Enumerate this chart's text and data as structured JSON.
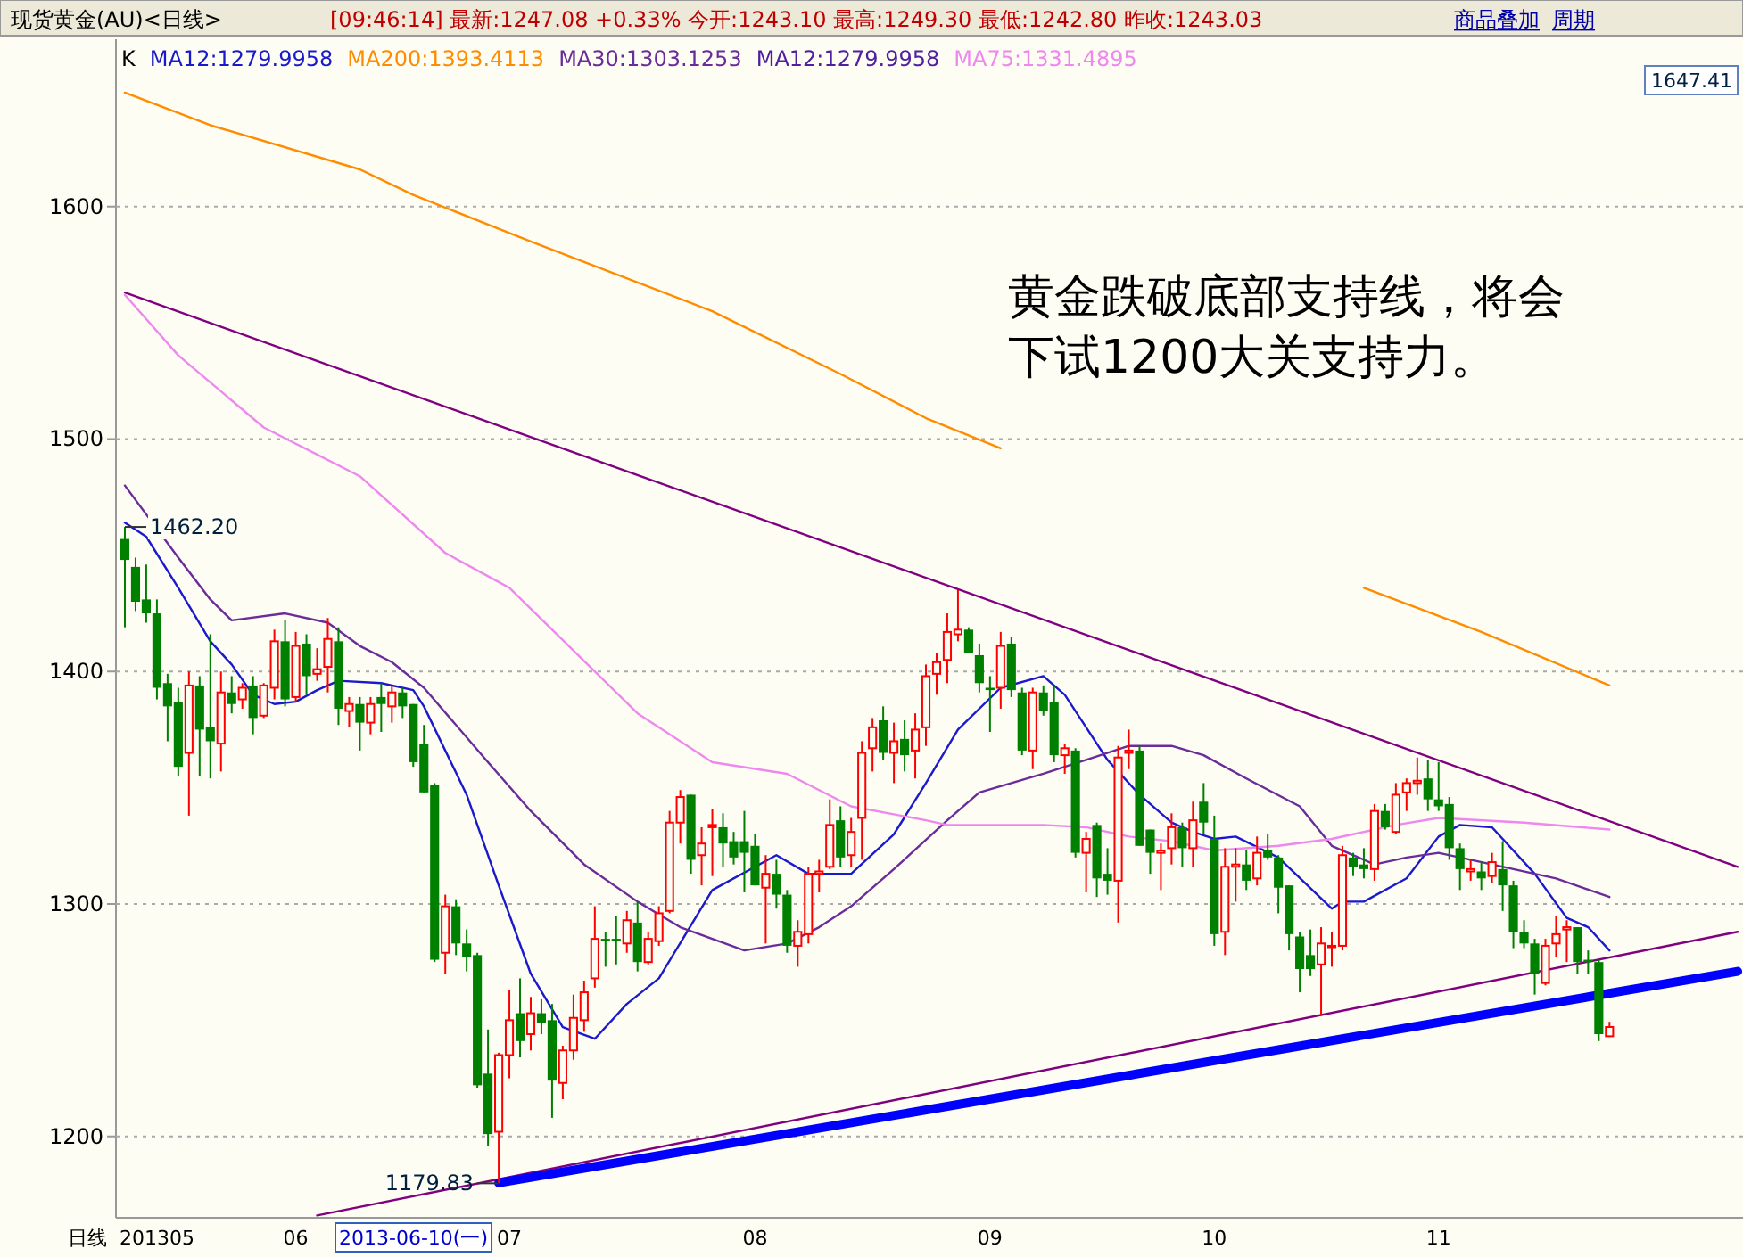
{
  "chart_data": {
    "type": "candlestick",
    "categories": [
      null,
      null,
      null,
      "201305",
      null,
      null,
      null,
      null,
      null,
      null,
      null,
      null,
      null,
      null,
      null,
      null,
      "06",
      null,
      null,
      null,
      null,
      null,
      null,
      null,
      null,
      null,
      null,
      null,
      null,
      null,
      null,
      null,
      null,
      null,
      null,
      null,
      "07",
      null,
      null,
      null,
      null,
      null,
      null,
      null,
      null,
      null,
      null,
      null,
      null,
      null,
      null,
      null,
      null,
      null,
      null,
      null,
      null,
      null,
      null,
      "08",
      null,
      null,
      null,
      null,
      null,
      null,
      null,
      null,
      null,
      null,
      null,
      null,
      null,
      null,
      null,
      null,
      null,
      null,
      null,
      null,
      null,
      "09",
      null,
      null,
      null,
      null,
      null,
      null,
      null,
      null,
      null,
      null,
      null,
      null,
      null,
      null,
      null,
      null,
      null,
      null,
      null,
      null,
      "10",
      null,
      null,
      null,
      null,
      null,
      null,
      null,
      null,
      null,
      null,
      null,
      null,
      null,
      null,
      null,
      null,
      null,
      null,
      null,
      null,
      "11",
      null,
      null,
      null,
      null,
      null,
      null,
      null,
      null,
      null,
      null,
      null,
      null,
      null,
      null,
      null,
      null,
      null,
      null,
      null,
      null,
      null,
      null,
      null,
      null,
      null,
      null,
      null,
      null
    ],
    "ohlc": [
      [
        1457,
        1462.2,
        1419,
        1448
      ],
      [
        1445,
        1449,
        1426,
        1430
      ],
      [
        1431,
        1446,
        1421,
        1425
      ],
      [
        1425,
        1431,
        1388,
        1393
      ],
      [
        1395,
        1399,
        1370,
        1385
      ],
      [
        1387,
        1393,
        1355,
        1359
      ],
      [
        1365,
        1400,
        1338,
        1394
      ],
      [
        1394,
        1398,
        1355,
        1375
      ],
      [
        1376,
        1416,
        1354,
        1370
      ],
      [
        1369,
        1400,
        1357,
        1391
      ],
      [
        1391,
        1398,
        1382,
        1386
      ],
      [
        1388,
        1395,
        1384,
        1393
      ],
      [
        1394,
        1398,
        1373,
        1380
      ],
      [
        1381,
        1395,
        1380,
        1394
      ],
      [
        1393,
        1418,
        1388,
        1413
      ],
      [
        1413,
        1422,
        1385,
        1388
      ],
      [
        1389,
        1417,
        1387,
        1411
      ],
      [
        1412,
        1416,
        1390,
        1398
      ],
      [
        1399,
        1410,
        1396,
        1401
      ],
      [
        1402,
        1423,
        1391,
        1414
      ],
      [
        1413,
        1419,
        1377,
        1384
      ],
      [
        1383,
        1389,
        1376,
        1386
      ],
      [
        1386,
        1389,
        1366,
        1378
      ],
      [
        1378,
        1389,
        1373,
        1386
      ],
      [
        1389,
        1395,
        1374,
        1386
      ],
      [
        1385,
        1394,
        1378,
        1391
      ],
      [
        1391,
        1393,
        1380,
        1385
      ],
      [
        1386,
        1386,
        1359,
        1361
      ],
      [
        1369,
        1377,
        1348,
        1348
      ],
      [
        1351,
        1352,
        1275,
        1276
      ],
      [
        1279,
        1304,
        1270,
        1299
      ],
      [
        1299,
        1302,
        1278,
        1283
      ],
      [
        1283,
        1289,
        1271,
        1277
      ],
      [
        1278,
        1279,
        1221,
        1222
      ],
      [
        1227,
        1246,
        1196,
        1201
      ],
      [
        1202,
        1236,
        1179.83,
        1235
      ],
      [
        1235,
        1263,
        1225,
        1250
      ],
      [
        1253,
        1268,
        1234,
        1241
      ],
      [
        1244,
        1260,
        1237,
        1253
      ],
      [
        1253,
        1259,
        1244,
        1249
      ],
      [
        1250,
        1257,
        1208,
        1224
      ],
      [
        1223,
        1239,
        1216,
        1237
      ],
      [
        1237,
        1261,
        1233,
        1251
      ],
      [
        1250,
        1267,
        1245,
        1262
      ],
      [
        1268,
        1299,
        1264,
        1285
      ],
      [
        1285,
        1288,
        1273,
        1284
      ],
      [
        1285,
        1295,
        1274,
        1284
      ],
      [
        1283,
        1297,
        1279,
        1293
      ],
      [
        1292,
        1301,
        1271,
        1275
      ],
      [
        1275,
        1288,
        1274,
        1285
      ],
      [
        1284,
        1299,
        1282,
        1296
      ],
      [
        1297,
        1340,
        1296,
        1335
      ],
      [
        1335,
        1349,
        1326,
        1346
      ],
      [
        1347,
        1347,
        1313,
        1319
      ],
      [
        1321,
        1333,
        1308,
        1326
      ],
      [
        1333,
        1341,
        1312,
        1334
      ],
      [
        1333,
        1339,
        1316,
        1326
      ],
      [
        1327,
        1331,
        1317,
        1320
      ],
      [
        1327,
        1340,
        1305,
        1322
      ],
      [
        1325,
        1330,
        1308,
        1308
      ],
      [
        1307,
        1321,
        1283,
        1313
      ],
      [
        1313,
        1319,
        1298,
        1304
      ],
      [
        1304,
        1306,
        1279,
        1282
      ],
      [
        1282,
        1293,
        1273,
        1288
      ],
      [
        1287,
        1316,
        1283,
        1313
      ],
      [
        1313,
        1319,
        1305,
        1314
      ],
      [
        1316,
        1345,
        1315,
        1334
      ],
      [
        1336,
        1342,
        1316,
        1320
      ],
      [
        1321,
        1337,
        1316,
        1331
      ],
      [
        1337,
        1370,
        1319,
        1365
      ],
      [
        1367,
        1380,
        1357,
        1376
      ],
      [
        1379,
        1385,
        1362,
        1365
      ],
      [
        1365,
        1378,
        1352,
        1370
      ],
      [
        1371,
        1379,
        1357,
        1364
      ],
      [
        1366,
        1382,
        1354,
        1375
      ],
      [
        1376,
        1403,
        1368,
        1398
      ],
      [
        1399,
        1408,
        1390,
        1404
      ],
      [
        1405,
        1425,
        1395,
        1417
      ],
      [
        1416,
        1435,
        1413,
        1418
      ],
      [
        1418,
        1419,
        1408,
        1408
      ],
      [
        1407,
        1412,
        1391,
        1395
      ],
      [
        1393,
        1398,
        1374,
        1392
      ],
      [
        1393,
        1417,
        1384,
        1411
      ],
      [
        1412,
        1415,
        1389,
        1392
      ],
      [
        1391,
        1393,
        1364,
        1366
      ],
      [
        1366,
        1393,
        1358,
        1391
      ],
      [
        1391,
        1394,
        1381,
        1383
      ],
      [
        1387,
        1394,
        1361,
        1364
      ],
      [
        1364,
        1369,
        1356,
        1367
      ],
      [
        1366,
        1367,
        1320,
        1322
      ],
      [
        1322,
        1331,
        1305,
        1328
      ],
      [
        1334,
        1335,
        1303,
        1311
      ],
      [
        1313,
        1324,
        1304,
        1310
      ],
      [
        1310,
        1368,
        1292,
        1363
      ],
      [
        1365,
        1375,
        1358,
        1366
      ],
      [
        1366,
        1368,
        1325,
        1325
      ],
      [
        1332,
        1332,
        1313,
        1322
      ],
      [
        1322,
        1326,
        1306,
        1323
      ],
      [
        1324,
        1339,
        1317,
        1333
      ],
      [
        1333,
        1335,
        1316,
        1324
      ],
      [
        1324,
        1344,
        1316,
        1336
      ],
      [
        1344,
        1352,
        1330,
        1335
      ],
      [
        1328,
        1338,
        1282,
        1287
      ],
      [
        1288,
        1324,
        1278,
        1316
      ],
      [
        1316,
        1324,
        1301,
        1317
      ],
      [
        1317,
        1323,
        1306,
        1310
      ],
      [
        1311,
        1329,
        1308,
        1322
      ],
      [
        1323,
        1330,
        1319,
        1320
      ],
      [
        1320,
        1321,
        1296,
        1307
      ],
      [
        1308,
        1308,
        1280,
        1287
      ],
      [
        1286,
        1288,
        1262,
        1272
      ],
      [
        1278,
        1289,
        1269,
        1272
      ],
      [
        1274,
        1290,
        1252,
        1283
      ],
      [
        1282,
        1288,
        1273,
        1282
      ],
      [
        1282,
        1325,
        1280,
        1321
      ],
      [
        1320,
        1322,
        1312,
        1316
      ],
      [
        1317,
        1324,
        1311,
        1315
      ],
      [
        1315,
        1343,
        1310,
        1340
      ],
      [
        1340,
        1343,
        1332,
        1333
      ],
      [
        1331,
        1352,
        1330,
        1347
      ],
      [
        1348,
        1354,
        1340,
        1352
      ],
      [
        1352,
        1363,
        1347,
        1353
      ],
      [
        1354,
        1362,
        1340,
        1345
      ],
      [
        1345,
        1361,
        1340,
        1342
      ],
      [
        1343,
        1346,
        1319,
        1324
      ],
      [
        1324,
        1326,
        1306,
        1315
      ],
      [
        1314,
        1319,
        1310,
        1315
      ],
      [
        1314,
        1318,
        1306,
        1311
      ],
      [
        1312,
        1322,
        1309,
        1318
      ],
      [
        1315,
        1327,
        1297,
        1308
      ],
      [
        1308,
        1310,
        1281,
        1288
      ],
      [
        1288,
        1293,
        1281,
        1283
      ],
      [
        1283,
        1285,
        1261,
        1270
      ],
      [
        1266,
        1285,
        1265,
        1282
      ],
      [
        1283,
        1295,
        1277,
        1287
      ],
      [
        1289,
        1293,
        1275,
        1290
      ],
      [
        1290,
        1290,
        1270,
        1275
      ],
      [
        1276,
        1280,
        1270,
        1275
      ],
      [
        1275,
        1276,
        1241,
        1244
      ],
      [
        1243.1,
        1249.3,
        1242.8,
        1247.08
      ],
      null,
      null,
      null,
      null,
      null,
      null,
      null,
      null,
      null,
      null,
      null,
      null
    ],
    "series": [
      {
        "type": "line",
        "name": "MA12:1279.9958",
        "color": "#1a1acc",
        "values": [
          1464,
          null,
          1458,
          null,
          null,
          1436,
          null,
          null,
          1413,
          null,
          1403,
          null,
          1390,
          null,
          1386,
          null,
          1387,
          null,
          1392,
          null,
          1396,
          null,
          null,
          null,
          1395,
          null,
          null,
          1392,
          1385,
          null,
          null,
          null,
          1347,
          null,
          null,
          1308,
          null,
          null,
          1270,
          null,
          null,
          1247,
          null,
          null,
          1242,
          null,
          null,
          1257,
          null,
          null,
          1268,
          null,
          null,
          null,
          null,
          1306,
          null,
          null,
          null,
          null,
          null,
          1321,
          null,
          null,
          1313,
          null,
          null,
          null,
          1313,
          null,
          null,
          null,
          1330,
          null,
          null,
          1352,
          null,
          null,
          1375,
          null,
          null,
          null,
          1393,
          null,
          null,
          null,
          1398,
          null,
          1390,
          null,
          null,
          null,
          1362,
          null,
          null,
          1347,
          null,
          null,
          1335,
          null,
          1331,
          null,
          1328,
          null,
          1329,
          null,
          null,
          null,
          1320,
          null,
          null,
          null,
          null,
          1298,
          1301,
          null,
          1301,
          null,
          null,
          null,
          1311,
          null,
          null,
          1329,
          null,
          1334,
          null,
          null,
          1333,
          null,
          null,
          null,
          1313,
          null,
          null,
          1294,
          null,
          1290,
          null,
          1280,
          null,
          null,
          null,
          null,
          null,
          null,
          null,
          null,
          null,
          null,
          null,
          null
        ]
      },
      {
        "type": "line",
        "name": "MA200:1393.4113",
        "color": "#ff8c00",
        "values": [
          1649,
          null,
          null,
          null,
          null,
          null,
          null,
          null,
          1635,
          null,
          null,
          null,
          null,
          null,
          null,
          null,
          null,
          null,
          null,
          null,
          null,
          null,
          1616,
          null,
          null,
          null,
          null,
          1605,
          null,
          null,
          null,
          null,
          null,
          null,
          null,
          null,
          null,
          null,
          1585,
          null,
          null,
          null,
          null,
          null,
          null,
          null,
          null,
          null,
          null,
          null,
          null,
          null,
          null,
          null,
          null,
          1555,
          null,
          null,
          null,
          null,
          null,
          null,
          null,
          null,
          null,
          null,
          null,
          1528,
          null,
          null,
          null,
          null,
          null,
          null,
          null,
          1509,
          null,
          null,
          null,
          null,
          null,
          null,
          1496,
          null,
          null,
          null,
          null,
          null,
          null,
          null,
          null,
          null,
          null,
          null,
          null,
          null,
          null,
          null,
          null,
          null,
          null,
          null,
          null,
          null,
          null,
          null,
          null,
          null,
          null,
          null,
          null,
          null,
          null,
          null,
          null,
          null,
          null,
          null,
          null,
          null,
          null,
          null,
          null,
          null,
          null,
          null,
          null,
          null,
          null,
          null,
          null,
          null,
          null,
          null,
          null,
          null,
          null,
          null,
          null,
          null,
          null,
          null,
          null,
          null,
          null,
          null,
          null,
          null,
          null,
          null,
          null,
          null
        ]
      },
      {
        "type": "line",
        "name": "MA30:1303.1253",
        "color": "#6a2c9a",
        "values": [
          1480,
          null,
          null,
          null,
          null,
          1449,
          null,
          null,
          1431,
          null,
          1422,
          null,
          null,
          null,
          null,
          1425,
          null,
          null,
          null,
          1421,
          null,
          null,
          1411,
          null,
          null,
          1404,
          null,
          null,
          1393,
          null,
          null,
          null,
          null,
          null,
          1361,
          null,
          null,
          null,
          1340,
          null,
          null,
          null,
          null,
          1317,
          null,
          null,
          null,
          null,
          1301,
          null,
          null,
          null,
          1290,
          null,
          null,
          null,
          null,
          null,
          1280,
          null,
          null,
          null,
          1283,
          null,
          null,
          1290,
          null,
          null,
          1299,
          null,
          null,
          null,
          1315,
          null,
          null,
          null,
          null,
          1336,
          null,
          null,
          1348,
          null,
          null,
          null,
          null,
          null,
          1356,
          null,
          null,
          null,
          1362,
          null,
          null,
          null,
          1368,
          null,
          null,
          null,
          1368,
          null,
          null,
          1364,
          null,
          null,
          null,
          1354,
          null,
          null,
          null,
          null,
          1342,
          null,
          null,
          1325,
          null,
          null,
          null,
          1317,
          null,
          null,
          1320,
          null,
          null,
          1322,
          null,
          null,
          null,
          null,
          1317,
          null,
          null,
          null,
          null,
          null,
          1311,
          null,
          null,
          null,
          null,
          1303,
          null,
          null,
          null,
          null,
          null,
          null,
          null,
          null,
          null,
          null,
          null,
          null
        ]
      },
      {
        "type": "line",
        "name": "MA75:1331.4895",
        "color": "#ee88ee",
        "values": [
          1562,
          null,
          null,
          null,
          null,
          1536,
          null,
          null,
          null,
          null,
          null,
          null,
          null,
          1505,
          null,
          null,
          null,
          null,
          null,
          null,
          null,
          null,
          1484,
          null,
          null,
          null,
          null,
          null,
          null,
          null,
          1451,
          null,
          null,
          null,
          null,
          null,
          1436,
          null,
          null,
          null,
          null,
          null,
          null,
          null,
          null,
          null,
          null,
          null,
          1382,
          null,
          null,
          null,
          null,
          null,
          null,
          1361,
          null,
          null,
          null,
          null,
          null,
          null,
          1356,
          null,
          null,
          null,
          null,
          null,
          1342,
          null,
          null,
          null,
          null,
          null,
          null,
          1336,
          null,
          1334,
          null,
          null,
          null,
          null,
          null,
          null,
          null,
          null,
          1334,
          null,
          null,
          null,
          1333,
          null,
          null,
          null,
          1329,
          null,
          null,
          null,
          1327,
          null,
          null,
          null,
          1323,
          null,
          null,
          null,
          null,
          null,
          1325,
          null,
          null,
          null,
          null,
          1328,
          null,
          null,
          null,
          null,
          null,
          1334,
          null,
          null,
          null,
          1337,
          null,
          null,
          null,
          null,
          null,
          null,
          null,
          1335,
          null,
          null,
          null,
          null,
          null,
          null,
          null,
          1332,
          null,
          null,
          null,
          null,
          null,
          null,
          null,
          null,
          null,
          null,
          null,
          null
        ]
      },
      {
        "type": "line",
        "color": "#ff8c00",
        "values": [
          null,
          null,
          null,
          null,
          null,
          null,
          null,
          null,
          null,
          null,
          null,
          null,
          null,
          null,
          null,
          null,
          null,
          null,
          null,
          null,
          null,
          null,
          null,
          null,
          null,
          null,
          null,
          null,
          null,
          null,
          null,
          null,
          null,
          null,
          null,
          null,
          null,
          null,
          null,
          null,
          null,
          null,
          null,
          null,
          null,
          null,
          null,
          null,
          null,
          null,
          null,
          null,
          null,
          null,
          null,
          null,
          null,
          null,
          null,
          null,
          null,
          null,
          null,
          null,
          null,
          null,
          null,
          null,
          null,
          null,
          null,
          null,
          null,
          null,
          null,
          null,
          null,
          null,
          null,
          null,
          null,
          null,
          null,
          null,
          null,
          null,
          null,
          null,
          null,
          null,
          null,
          null,
          null,
          null,
          null,
          null,
          null,
          null,
          null,
          null,
          null,
          null,
          null,
          null,
          null,
          null,
          null,
          null,
          null,
          null,
          null,
          null,
          null,
          null,
          null,
          null,
          1436,
          null,
          null,
          null,
          null,
          null,
          null,
          null,
          null,
          null,
          null,
          1417,
          null,
          null,
          null,
          null,
          null,
          null,
          null,
          null,
          null,
          null,
          null,
          1394,
          null,
          null,
          null,
          null,
          null,
          null,
          null,
          null,
          null,
          null,
          null,
          null
        ]
      },
      {
        "type": "line",
        "color": "#800080",
        "values": [
          1563,
          null,
          null,
          null,
          null,
          null,
          null,
          null,
          null,
          null,
          null,
          null,
          null,
          null,
          null,
          null,
          null,
          null,
          null,
          null,
          null,
          null,
          null,
          null,
          null,
          null,
          null,
          null,
          null,
          null,
          null,
          null,
          null,
          null,
          null,
          null,
          null,
          null,
          null,
          null,
          null,
          null,
          null,
          null,
          null,
          null,
          null,
          null,
          null,
          null,
          null,
          null,
          null,
          null,
          null,
          null,
          null,
          null,
          null,
          null,
          null,
          null,
          null,
          null,
          null,
          null,
          null,
          null,
          null,
          null,
          null,
          null,
          null,
          null,
          null,
          null,
          null,
          null,
          null,
          null,
          null,
          null,
          null,
          null,
          null,
          null,
          null,
          null,
          null,
          null,
          null,
          null,
          null,
          null,
          null,
          null,
          null,
          null,
          null,
          null,
          null,
          null,
          null,
          null,
          null,
          null,
          null,
          null,
          null,
          null,
          null,
          null,
          null,
          null,
          null,
          null,
          null,
          null,
          null,
          null,
          null,
          null,
          null,
          null,
          null,
          null,
          null,
          null,
          null,
          null,
          null,
          null,
          null,
          null,
          null,
          null,
          null,
          null,
          null,
          null,
          null,
          null,
          null,
          null,
          null,
          null,
          null,
          null,
          null,
          null,
          null,
          1316
        ]
      },
      {
        "type": "line",
        "color": "#800080",
        "values": [
          null,
          null,
          null,
          null,
          null,
          null,
          null,
          null,
          null,
          null,
          null,
          null,
          null,
          null,
          null,
          null,
          null,
          null,
          1166,
          null,
          null,
          null,
          null,
          null,
          null,
          null,
          null,
          null,
          null,
          null,
          null,
          null,
          null,
          null,
          null,
          null,
          null,
          null,
          null,
          null,
          null,
          null,
          null,
          null,
          null,
          null,
          null,
          null,
          null,
          null,
          null,
          null,
          null,
          null,
          null,
          null,
          null,
          null,
          null,
          null,
          null,
          null,
          null,
          null,
          null,
          null,
          null,
          null,
          null,
          null,
          null,
          null,
          null,
          null,
          null,
          null,
          null,
          null,
          null,
          null,
          null,
          null,
          null,
          null,
          null,
          null,
          null,
          null,
          null,
          null,
          null,
          null,
          null,
          null,
          null,
          null,
          null,
          null,
          null,
          null,
          null,
          null,
          null,
          null,
          null,
          null,
          null,
          null,
          null,
          null,
          null,
          null,
          null,
          null,
          null,
          null,
          null,
          null,
          null,
          null,
          null,
          null,
          null,
          null,
          null,
          null,
          null,
          null,
          null,
          null,
          null,
          null,
          null,
          null,
          null,
          null,
          null,
          null,
          null,
          null,
          null,
          null,
          null,
          null,
          null,
          null,
          null,
          null,
          null,
          null,
          null,
          1288
        ]
      },
      {
        "type": "line",
        "color": "#0000ff",
        "values": [
          null,
          null,
          null,
          null,
          null,
          null,
          null,
          null,
          null,
          null,
          null,
          null,
          null,
          null,
          null,
          null,
          null,
          null,
          null,
          null,
          null,
          null,
          null,
          null,
          null,
          null,
          null,
          null,
          null,
          null,
          null,
          null,
          null,
          null,
          null,
          1180,
          null,
          null,
          null,
          null,
          null,
          null,
          null,
          null,
          null,
          null,
          null,
          null,
          null,
          null,
          null,
          null,
          null,
          null,
          null,
          null,
          null,
          null,
          null,
          null,
          null,
          null,
          null,
          null,
          null,
          null,
          null,
          null,
          null,
          null,
          null,
          null,
          null,
          null,
          null,
          null,
          null,
          null,
          null,
          null,
          null,
          null,
          null,
          null,
          null,
          null,
          null,
          null,
          null,
          null,
          null,
          null,
          null,
          null,
          null,
          null,
          null,
          null,
          null,
          null,
          null,
          null,
          null,
          null,
          null,
          null,
          null,
          null,
          null,
          null,
          null,
          null,
          null,
          null,
          null,
          null,
          null,
          null,
          null,
          null,
          null,
          null,
          null,
          null,
          null,
          null,
          null,
          null,
          null,
          null,
          null,
          null,
          null,
          null,
          null,
          null,
          null,
          null,
          null,
          null,
          null,
          null,
          null,
          null,
          null,
          null,
          null,
          null,
          null,
          null,
          null,
          1271
        ]
      }
    ],
    "ylim": [
      1165,
      1672
    ],
    "yticks": [
      1200,
      1300,
      1400,
      1500,
      1600
    ],
    "grid": "y",
    "legend": "top left",
    "annotations": [
      "K",
      "MA12:1279.9958",
      "现货黄金(AU)<日线>",
      "[09:46:14]  最新:1247.08 +0.33%  今开:1243.10  最高:1249.30  最低:1242.80  昨收:1243.03",
      "商品叠加",
      "周期",
      "黄金跌破底部支持线，将会下试1200大关支持力。",
      "1462.20",
      {
        "text": "1179.83",
        "y": 1179.83
      },
      "1647.41",
      "2013-06-10(一)",
      "日线"
    ]
  }
}
